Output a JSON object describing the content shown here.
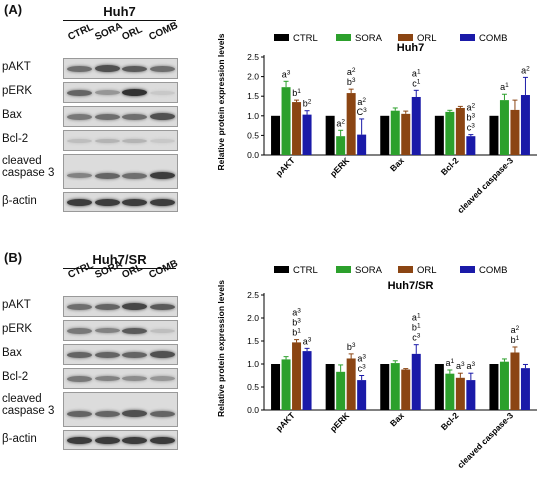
{
  "panels": [
    {
      "label": "(A)",
      "blot": {
        "title": "Huh7",
        "lanes": [
          "CTRL",
          "SORA",
          "ORL",
          "COMB"
        ],
        "rows": [
          {
            "label": "pAKT",
            "intensity": [
              0.55,
              0.7,
              0.65,
              0.55
            ]
          },
          {
            "label": "pERK",
            "intensity": [
              0.6,
              0.35,
              0.85,
              0.1
            ]
          },
          {
            "label": "Bax",
            "intensity": [
              0.5,
              0.55,
              0.55,
              0.7
            ]
          },
          {
            "label": "Bcl-2",
            "intensity": [
              0.15,
              0.2,
              0.2,
              0.1
            ]
          },
          {
            "label": "cleaved caspase 3",
            "intensity": [
              0.45,
              0.6,
              0.55,
              0.8
            ]
          },
          {
            "label": "β-actin",
            "intensity": [
              0.8,
              0.8,
              0.8,
              0.8
            ]
          }
        ]
      },
      "chart_data": {
        "type": "bar",
        "title": "Huh7",
        "ylabel": "Relative protein expression levels",
        "ylim": [
          0,
          2.5
        ],
        "yticks": [
          "0.0",
          "0.5",
          "1.0",
          "1.5",
          "2.0",
          "2.5"
        ],
        "categories": [
          "pAKT",
          "pERK",
          "Bax",
          "Bcl-2",
          "cleaved caspase-3"
        ],
        "series": [
          {
            "name": "CTRL",
            "color": "#000000",
            "values": [
              1.0,
              1.0,
              1.0,
              1.0,
              1.0
            ],
            "errors": [
              0,
              0,
              0,
              0,
              0
            ]
          },
          {
            "name": "SORA",
            "color": "#2ca02c",
            "values": [
              1.73,
              0.48,
              1.13,
              1.1,
              1.4
            ],
            "errors": [
              0.15,
              0.15,
              0.07,
              0.04,
              0.15
            ]
          },
          {
            "name": "ORL",
            "color": "#8b4513",
            "values": [
              1.35,
              1.58,
              1.05,
              1.2,
              1.15
            ],
            "errors": [
              0.05,
              0.1,
              0.07,
              0.04,
              0.25
            ]
          },
          {
            "name": "COMB",
            "color": "#1a1aa8",
            "values": [
              1.03,
              0.52,
              1.48,
              0.48,
              1.53
            ],
            "errors": [
              0.1,
              0.4,
              0.17,
              0.04,
              0.45
            ]
          }
        ],
        "annotations": [
          {
            "category": 0,
            "series": 1,
            "lines": [
              "a3"
            ]
          },
          {
            "category": 0,
            "series": 2,
            "lines": [
              "b1"
            ]
          },
          {
            "category": 0,
            "series": 3,
            "lines": [
              "b2"
            ]
          },
          {
            "category": 1,
            "series": 1,
            "lines": [
              "a2"
            ]
          },
          {
            "category": 1,
            "series": 2,
            "lines": [
              "a2",
              "b3"
            ]
          },
          {
            "category": 1,
            "series": 3,
            "lines": [
              "a2",
              "C3"
            ]
          },
          {
            "category": 2,
            "series": 3,
            "lines": [
              "a1",
              "c1"
            ]
          },
          {
            "category": 3,
            "series": 3,
            "lines": [
              "a2",
              "b3",
              "c3"
            ]
          },
          {
            "category": 4,
            "series": 1,
            "lines": [
              "a1"
            ]
          },
          {
            "category": 4,
            "series": 3,
            "lines": [
              "a2"
            ]
          }
        ]
      }
    },
    {
      "label": "(B)",
      "blot": {
        "title": "Huh7/SR",
        "lanes": [
          "CTRL",
          "SORA",
          "ORL",
          "COMB"
        ],
        "rows": [
          {
            "label": "pAKT",
            "intensity": [
              0.55,
              0.6,
              0.75,
              0.65
            ]
          },
          {
            "label": "pERK",
            "intensity": [
              0.5,
              0.45,
              0.65,
              0.15
            ]
          },
          {
            "label": "Bax",
            "intensity": [
              0.6,
              0.6,
              0.6,
              0.7
            ]
          },
          {
            "label": "Bcl-2",
            "intensity": [
              0.5,
              0.45,
              0.4,
              0.35
            ]
          },
          {
            "label": "cleaved caspase 3",
            "intensity": [
              0.6,
              0.6,
              0.7,
              0.6
            ]
          },
          {
            "label": "β-actin",
            "intensity": [
              0.8,
              0.8,
              0.8,
              0.8
            ]
          }
        ]
      },
      "chart_data": {
        "type": "bar",
        "title": "Huh7/SR",
        "ylabel": "Relative protein expression levels",
        "ylim": [
          0,
          2.5
        ],
        "yticks": [
          "0.0",
          "0.5",
          "1.0",
          "1.5",
          "2.0",
          "2.5"
        ],
        "categories": [
          "pAKT",
          "pERK",
          "Bax",
          "Bcl-2",
          "cleaved caspase-3"
        ],
        "series": [
          {
            "name": "CTRL",
            "color": "#000000",
            "values": [
              1.0,
              1.0,
              1.0,
              1.0,
              1.0
            ],
            "errors": [
              0,
              0,
              0,
              0,
              0
            ]
          },
          {
            "name": "SORA",
            "color": "#2ca02c",
            "values": [
              1.1,
              0.83,
              1.02,
              0.79,
              1.05
            ],
            "errors": [
              0.06,
              0.15,
              0.05,
              0.08,
              0.06
            ]
          },
          {
            "name": "ORL",
            "color": "#8b4513",
            "values": [
              1.47,
              1.12,
              0.88,
              0.7,
              1.25
            ],
            "errors": [
              0.06,
              0.1,
              0.02,
              0.1,
              0.12
            ]
          },
          {
            "name": "COMB",
            "color": "#1a1aa8",
            "values": [
              1.28,
              0.65,
              1.22,
              0.65,
              0.91
            ],
            "errors": [
              0.06,
              0.1,
              0.2,
              0.15,
              0.08
            ]
          }
        ],
        "annotations": [
          {
            "category": 0,
            "series": 2,
            "lines": [
              "a3",
              "b3",
              "b1"
            ]
          },
          {
            "category": 0,
            "series": 3,
            "lines": [
              "a3"
            ]
          },
          {
            "category": 1,
            "series": 2,
            "lines": [
              "b3"
            ]
          },
          {
            "category": 1,
            "series": 3,
            "lines": [
              "a3",
              "c3"
            ]
          },
          {
            "category": 2,
            "series": 3,
            "lines": [
              "a1",
              "b1",
              "c3"
            ]
          },
          {
            "category": 3,
            "series": 1,
            "lines": [
              "a1"
            ]
          },
          {
            "category": 3,
            "series": 2,
            "lines": [
              "a3"
            ]
          },
          {
            "category": 3,
            "series": 3,
            "lines": [
              "a3"
            ]
          },
          {
            "category": 4,
            "series": 2,
            "lines": [
              "a2",
              "b1"
            ]
          }
        ]
      }
    }
  ]
}
